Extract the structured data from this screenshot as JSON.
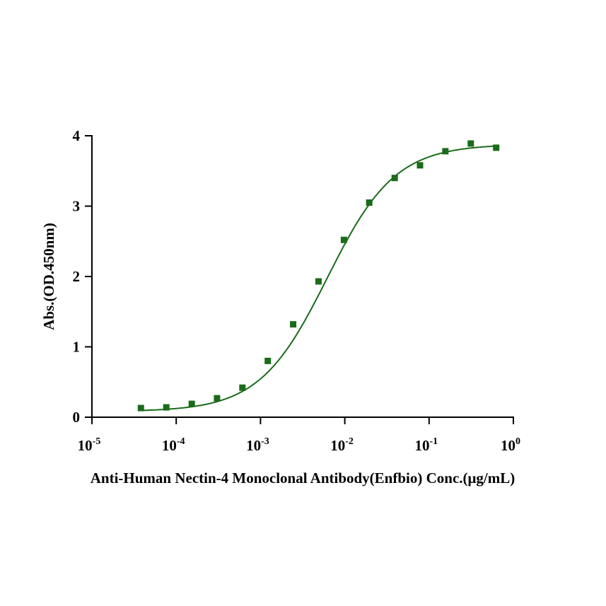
{
  "chart_data": {
    "type": "scatter",
    "title": "",
    "xlabel": "Anti-Human Nectin-4 Monoclonal Antibody(Enfbio) Conc.(μg/mL)",
    "ylabel": "Abs.(OD.450nm)",
    "xscale": "log",
    "xlim": [
      1e-05,
      1
    ],
    "ylim": [
      0,
      4
    ],
    "x_ticks": [
      {
        "value": 1e-05,
        "base": "10",
        "exp": "-5"
      },
      {
        "value": 0.0001,
        "base": "10",
        "exp": "-4"
      },
      {
        "value": 0.001,
        "base": "10",
        "exp": "-3"
      },
      {
        "value": 0.01,
        "base": "10",
        "exp": "-2"
      },
      {
        "value": 0.1,
        "base": "10",
        "exp": "-1"
      },
      {
        "value": 1,
        "base": "10",
        "exp": "0"
      }
    ],
    "y_ticks": [
      "0",
      "1",
      "2",
      "3",
      "4"
    ],
    "grid": false,
    "series": [
      {
        "name": "Anti-Human Nectin-4 Monoclonal Antibody",
        "color": "#1a6b1a",
        "marker": "square",
        "x": [
          3.81e-05,
          7.63e-05,
          0.000153,
          0.000305,
          0.00061,
          0.00122,
          0.00244,
          0.00488,
          0.00977,
          0.0195,
          0.0391,
          0.0781,
          0.156,
          0.3125,
          0.625
        ],
        "y": [
          0.13,
          0.14,
          0.19,
          0.27,
          0.42,
          0.8,
          1.32,
          1.93,
          2.52,
          3.05,
          3.4,
          3.58,
          3.78,
          3.89,
          3.83
        ],
        "fit": {
          "model": "4PL",
          "bottom": 0.08,
          "top": 3.88,
          "ec50": 0.0062,
          "hill": 1.08
        }
      }
    ]
  }
}
